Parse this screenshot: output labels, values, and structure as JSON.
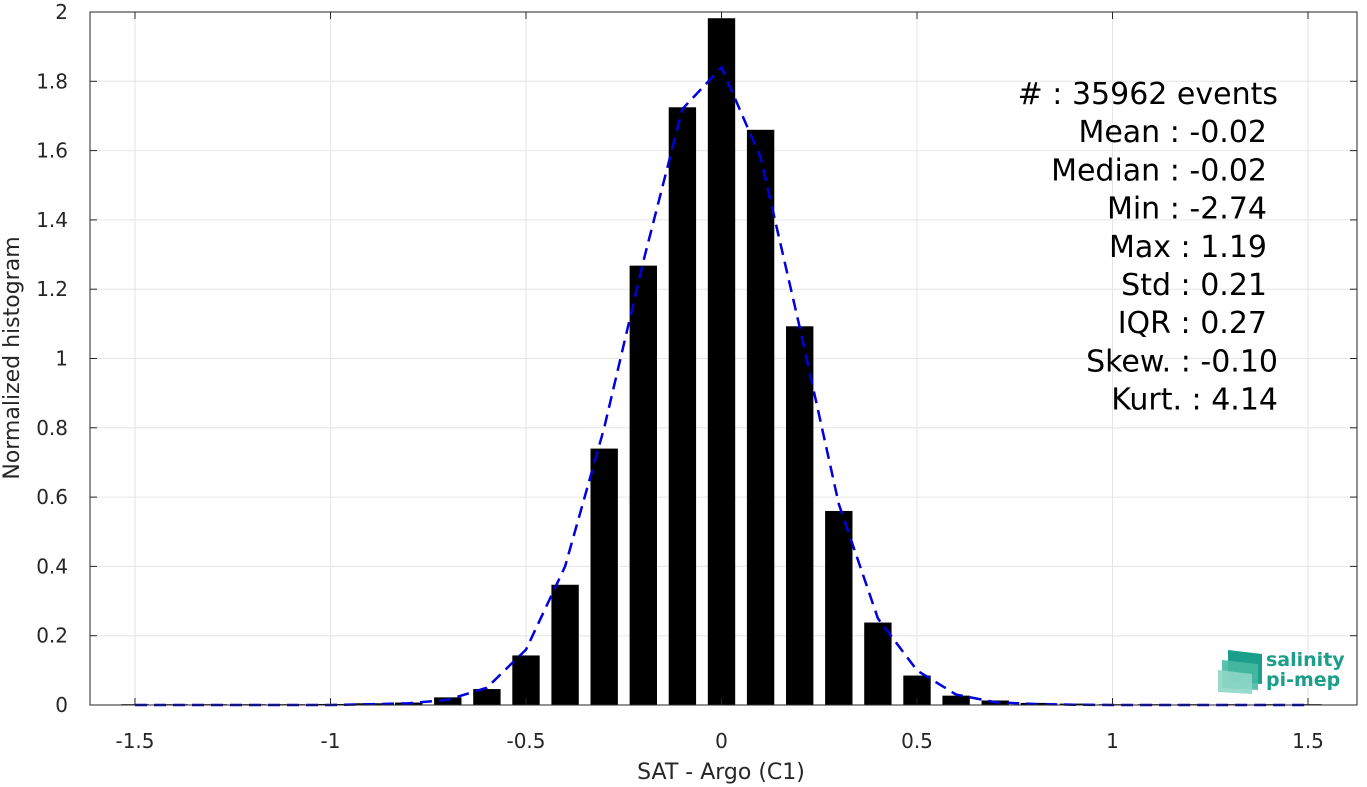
{
  "chart_data": {
    "type": "bar",
    "title": "",
    "xlabel": "SAT - Argo (C1)",
    "ylabel": "Normalized histogram",
    "xlim": [
      -1.5,
      1.5
    ],
    "ylim": [
      0,
      2
    ],
    "grid": true,
    "xticks": [
      "-1.5",
      "-1",
      "-0.5",
      "0",
      "0.5",
      "1",
      "1.5"
    ],
    "yticks": [
      "0",
      "0.2",
      "0.4",
      "0.6",
      "0.8",
      "1",
      "1.2",
      "1.4",
      "1.6",
      "1.8",
      "2"
    ],
    "bar_color": "#000000",
    "bars": {
      "x": [
        -1.5,
        -1.4,
        -1.3,
        -1.2,
        -1.1,
        -1.0,
        -0.9,
        -0.8,
        -0.7,
        -0.6,
        -0.5,
        -0.4,
        -0.3,
        -0.2,
        -0.1,
        0.0,
        0.1,
        0.2,
        0.3,
        0.4,
        0.5,
        0.6,
        0.7,
        0.8,
        0.9,
        1.0,
        1.1,
        1.2,
        1.3,
        1.4,
        1.5
      ],
      "values": [
        0.002,
        0.001,
        0.001,
        0.001,
        0.002,
        0.003,
        0.005,
        0.007,
        0.022,
        0.046,
        0.143,
        0.347,
        0.74,
        1.268,
        1.725,
        1.982,
        1.66,
        1.093,
        0.56,
        0.238,
        0.085,
        0.027,
        0.013,
        0.006,
        0.004,
        0.002,
        0.001,
        0.001,
        0.001,
        0.001,
        0.001
      ]
    },
    "fit_curve": {
      "style": "dashed",
      "color": "#0000dd",
      "x": [
        -1.5,
        -1.4,
        -1.3,
        -1.2,
        -1.1,
        -1.0,
        -0.9,
        -0.8,
        -0.7,
        -0.6,
        -0.5,
        -0.4,
        -0.3,
        -0.2,
        -0.1,
        0.0,
        0.1,
        0.2,
        0.3,
        0.4,
        0.5,
        0.6,
        0.7,
        0.8,
        0.9,
        1.0,
        1.1,
        1.2,
        1.3,
        1.4,
        1.5
      ],
      "y": [
        0.0,
        0.0,
        0.0,
        0.0,
        0.0,
        0.0,
        0.002,
        0.005,
        0.015,
        0.05,
        0.16,
        0.4,
        0.8,
        1.28,
        1.72,
        1.84,
        1.58,
        1.09,
        0.58,
        0.25,
        0.1,
        0.03,
        0.008,
        0.003,
        0.001,
        0.0,
        0.0,
        0.0,
        0.0,
        0.0,
        0.0
      ]
    },
    "annotations": [
      {
        "label": "#  :",
        "value": "35962 events"
      },
      {
        "label": "Mean :",
        "value": "-0.02"
      },
      {
        "label": "Median :",
        "value": "-0.02"
      },
      {
        "label": "Min :",
        "value": "-2.74"
      },
      {
        "label": "Max :",
        "value": "1.19"
      },
      {
        "label": "Std :",
        "value": "0.21"
      },
      {
        "label": "IQR :",
        "value": "0.27"
      },
      {
        "label": "Skew. :",
        "value": "-0.10"
      },
      {
        "label": "Kurt. :",
        "value": "4.14"
      }
    ]
  },
  "logo": {
    "line1": "salinity",
    "line2": "pi-mep",
    "color": "#1b9e8a"
  }
}
